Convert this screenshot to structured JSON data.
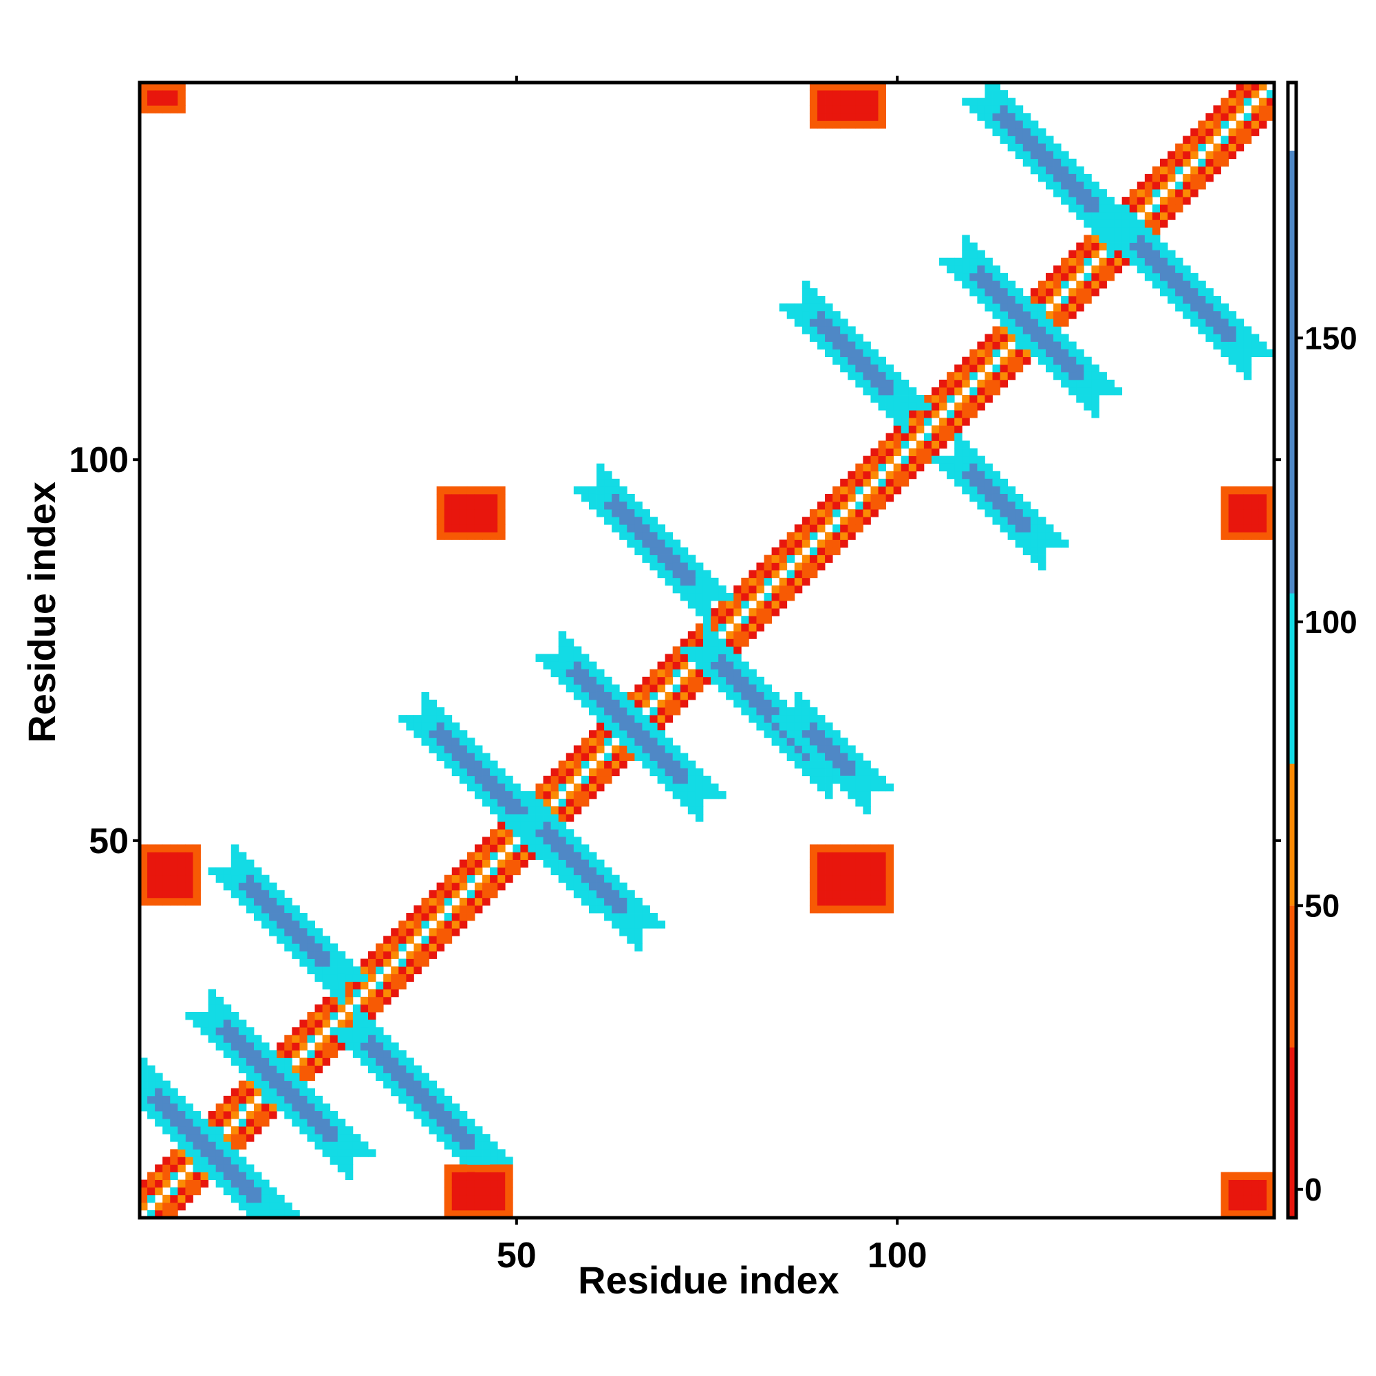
{
  "chart_data": {
    "type": "heatmap",
    "title": "",
    "xlabel": "Residue index",
    "ylabel": "Residue index",
    "xlim": [
      1,
      149
    ],
    "ylim": [
      1,
      149
    ],
    "xticks": [
      50,
      100
    ],
    "yticks": [
      50,
      100
    ],
    "colorbar": {
      "ticks": [
        0,
        50,
        100,
        150
      ],
      "range": [
        -5,
        195
      ],
      "bins": [
        {
          "from": -5,
          "to": 25,
          "color": "#e8160d"
        },
        {
          "from": 25,
          "to": 50,
          "color": "#f75a04"
        },
        {
          "from": 50,
          "to": 75,
          "color": "#fb8a04"
        },
        {
          "from": 75,
          "to": 105,
          "color": "#13dbe5"
        },
        {
          "from": 105,
          "to": 183,
          "color": "#4f88c6"
        },
        {
          "from": 183,
          "to": 195,
          "color": "#ffffff"
        }
      ]
    },
    "diagonal_band": {
      "from": 1,
      "to": 149,
      "width": 4
    },
    "features": [
      {
        "kind": "antidiagonal",
        "x": [
          1,
          18
        ],
        "y": [
          18,
          1
        ],
        "width": 3,
        "value": 140
      },
      {
        "kind": "antidiagonal",
        "x": [
          10,
          28
        ],
        "y": [
          27,
          9
        ],
        "width": 3,
        "value": 140
      },
      {
        "kind": "antidiagonal",
        "x": [
          13,
          27
        ],
        "y": [
          46,
          32
        ],
        "width": 3,
        "value": 140
      },
      {
        "kind": "antidiagonal",
        "x": [
          29,
          46
        ],
        "y": [
          25,
          8
        ],
        "width": 3,
        "value": 140
      },
      {
        "kind": "antidiagonal",
        "x": [
          38,
          60
        ],
        "y": [
          66,
          44
        ],
        "width": 3,
        "value": 140
      },
      {
        "kind": "antidiagonal",
        "x": [
          52,
          66
        ],
        "y": [
          53,
          39
        ],
        "width": 3,
        "value": 140
      },
      {
        "kind": "antidiagonal",
        "x": [
          56,
          74
        ],
        "y": [
          74,
          56
        ],
        "width": 3,
        "value": 140
      },
      {
        "kind": "antidiagonal",
        "x": [
          61,
          75
        ],
        "y": [
          96,
          82
        ],
        "width": 3,
        "value": 140
      },
      {
        "kind": "antidiagonal",
        "x": [
          75,
          91
        ],
        "y": [
          75,
          59
        ],
        "width": 3,
        "value": 140
      },
      {
        "kind": "antidiagonal",
        "x": [
          87,
          96
        ],
        "y": [
          66,
          57
        ],
        "width": 3,
        "value": 140
      },
      {
        "kind": "antidiagonal",
        "x": [
          88,
          101
        ],
        "y": [
          120,
          107
        ],
        "width": 3,
        "value": 140
      },
      {
        "kind": "antidiagonal",
        "x": [
          108,
          119
        ],
        "y": [
          100,
          89
        ],
        "width": 3,
        "value": 140
      },
      {
        "kind": "antidiagonal",
        "x": [
          109,
          126
        ],
        "y": [
          126,
          109
        ],
        "width": 3,
        "value": 140
      },
      {
        "kind": "antidiagonal",
        "x": [
          112,
          128
        ],
        "y": [
          147,
          131
        ],
        "width": 3,
        "value": 140
      },
      {
        "kind": "antidiagonal",
        "x": [
          130,
          146
        ],
        "y": [
          130,
          114
        ],
        "width": 3,
        "value": 140
      },
      {
        "kind": "blob",
        "x": [
          1,
          6
        ],
        "y": [
          146,
          149
        ],
        "value": 20
      },
      {
        "kind": "blob",
        "x": [
          89,
          98
        ],
        "y": [
          144,
          149
        ],
        "value": 20
      },
      {
        "kind": "blob",
        "x": [
          40,
          48
        ],
        "y": [
          90,
          96
        ],
        "value": 20
      },
      {
        "kind": "blob",
        "x": [
          1,
          8
        ],
        "y": [
          42,
          49
        ],
        "value": 20
      },
      {
        "kind": "blob",
        "x": [
          89,
          99
        ],
        "y": [
          41,
          49
        ],
        "value": 20
      },
      {
        "kind": "blob",
        "x": [
          41,
          49
        ],
        "y": [
          1,
          7
        ],
        "value": 20
      },
      {
        "kind": "blob",
        "x": [
          143,
          149
        ],
        "y": [
          90,
          96
        ],
        "value": 20
      },
      {
        "kind": "blob",
        "x": [
          143,
          149
        ],
        "y": [
          1,
          6
        ],
        "value": 20
      }
    ]
  }
}
